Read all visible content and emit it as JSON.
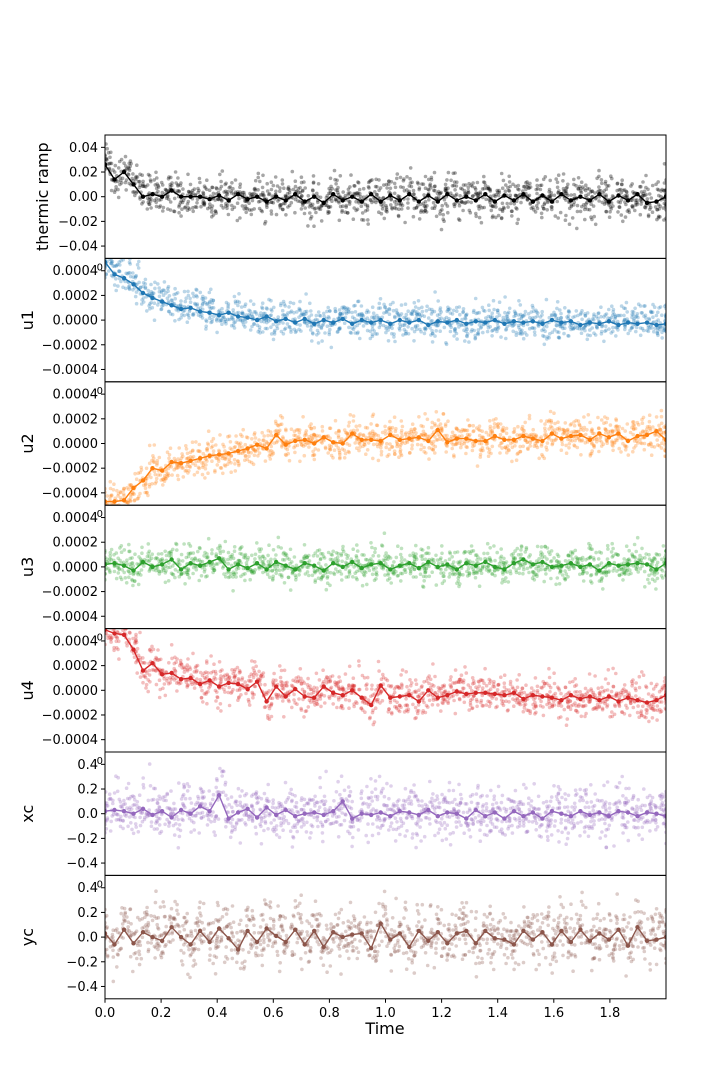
{
  "chart_data": {
    "type": "scatter",
    "layout": "stacked-panels-shared-x",
    "xlabel": "Time",
    "xlim": [
      0.0,
      2.0
    ],
    "x_ticks": [
      0.0,
      0.2,
      0.4,
      0.6,
      0.8,
      1.0,
      1.2,
      1.4,
      1.6,
      1.8
    ],
    "x_tick_labels": [
      "0.0",
      "0.2",
      "0.4",
      "0.6",
      "0.8",
      "1.0",
      "1.2",
      "1.4",
      "1.6",
      "1.8"
    ],
    "series": [
      {
        "name": "thermic ramp",
        "color": "#000000",
        "ylim": [
          -0.05,
          0.05
        ],
        "y_ticks": [
          -0.04,
          -0.02,
          0.0,
          0.02,
          0.04
        ],
        "y_tick_labels": [
          "−0.04",
          "−0.02",
          "0.00",
          "0.02",
          "0.04"
        ],
        "mean_line": [
          0.026,
          0.014,
          0.02,
          0.01,
          0.0,
          0.002,
          0.0,
          0.005,
          0.0,
          0.0,
          0.0,
          -0.002,
          0.001,
          -0.003,
          0.002,
          -0.002,
          0.0,
          -0.004,
          0.0,
          -0.003,
          0.002,
          -0.004,
          0.0,
          -0.005,
          0.002,
          -0.003,
          0.0,
          -0.004,
          0.002,
          -0.004,
          0.001,
          -0.003,
          0.002,
          -0.004,
          0.001,
          -0.004,
          0.002,
          -0.003,
          0.0,
          -0.003,
          0.002,
          -0.004,
          0.001,
          -0.003,
          0.002,
          -0.004,
          0.001,
          -0.004,
          0.002,
          -0.003,
          0.0,
          -0.003,
          0.002,
          -0.004,
          0.001,
          -0.003,
          0.002,
          -0.005,
          -0.004,
          0.0
        ],
        "scatter_spread": 0.008,
        "scatter_alpha": 0.35
      },
      {
        "name": "u1",
        "color": "#1f77b4",
        "ylim": [
          -0.0005,
          0.0005
        ],
        "y_ticks": [
          -0.0004,
          -0.0002,
          0.0,
          0.0002,
          0.0004
        ],
        "y_tick_labels": [
          "−0.0004",
          "−0.0002",
          "0.0000",
          "0.0002",
          "0.0004"
        ],
        "offset_text": "0",
        "mean_line": [
          0.00047,
          0.00037,
          0.00034,
          0.00029,
          0.00022,
          0.00018,
          0.00015,
          0.00012,
          9e-05,
          0.0001,
          7e-05,
          6e-05,
          4e-05,
          6e-05,
          3e-05,
          2e-05,
          0.0,
          3e-05,
          -1e-05,
          1e-05,
          -2e-05,
          1e-05,
          -3e-05,
          0.0,
          -2e-05,
          1e-05,
          -3e-05,
          0.0,
          -2e-05,
          0.0,
          -3e-05,
          0.0,
          -2e-05,
          0.0,
          -4e-05,
          -1e-05,
          -2e-05,
          0.0,
          -3e-05,
          -1e-05,
          -2e-05,
          0.0,
          -3e-05,
          -1e-05,
          -2e-05,
          -1e-05,
          -3e-05,
          0.0,
          -2e-05,
          -1e-05,
          -4e-05,
          -2e-05,
          -3e-05,
          -1e-05,
          -4e-05,
          -2e-05,
          -3e-05,
          -2e-05,
          -4e-05,
          -3e-05
        ],
        "scatter_spread": 7e-05,
        "scatter_alpha": 0.3
      },
      {
        "name": "u2",
        "color": "#ff7f0e",
        "ylim": [
          -0.0005,
          0.0005
        ],
        "y_ticks": [
          -0.0004,
          -0.0002,
          0.0,
          0.0002,
          0.0004
        ],
        "y_tick_labels": [
          "−0.0004",
          "−0.0002",
          "0.0000",
          "0.0002",
          "0.0004"
        ],
        "offset_text": "0",
        "mean_line": [
          -0.00047,
          -0.00047,
          -0.00046,
          -0.00036,
          -0.0003,
          -0.0002,
          -0.00022,
          -0.00015,
          -0.00016,
          -0.00014,
          -0.00012,
          -0.0001,
          -9e-05,
          -8e-05,
          -6e-05,
          -4e-05,
          -1e-05,
          -4e-05,
          7e-05,
          -1e-05,
          2e-05,
          3e-05,
          0.0,
          5e-05,
          1e-05,
          0.0,
          8e-05,
          3e-05,
          3e-05,
          2e-05,
          7e-05,
          3e-05,
          4e-05,
          5e-05,
          2e-05,
          0.00011,
          1e-05,
          4e-05,
          4e-05,
          2e-05,
          2e-05,
          6e-05,
          3e-05,
          3e-05,
          6e-05,
          4e-05,
          2e-05,
          8e-05,
          4e-05,
          6e-05,
          7e-05,
          3e-05,
          8e-05,
          5e-05,
          8e-05,
          2e-05,
          6e-05,
          7e-05,
          0.0001,
          3e-05
        ],
        "scatter_spread": 7e-05,
        "scatter_alpha": 0.3
      },
      {
        "name": "u3",
        "color": "#2ca02c",
        "ylim": [
          -0.0005,
          0.0005
        ],
        "y_ticks": [
          -0.0004,
          -0.0002,
          0.0,
          0.0002,
          0.0004
        ],
        "y_tick_labels": [
          "−0.0004",
          "−0.0002",
          "0.0000",
          "0.0002",
          "0.0004"
        ],
        "offset_text": "0",
        "mean_line": [
          2e-05,
          3e-05,
          1e-05,
          -3e-05,
          4e-05,
          0.0,
          2e-05,
          6e-05,
          -2e-05,
          3e-05,
          1e-05,
          4e-05,
          7e-05,
          -2e-05,
          2e-05,
          -1e-05,
          3e-05,
          -2e-05,
          4e-05,
          1e-05,
          -2e-05,
          3e-05,
          1e-05,
          -3e-05,
          3e-05,
          0.0,
          4e-05,
          -1e-05,
          2e-05,
          3e-05,
          -2e-05,
          1e-05,
          3e-05,
          -1e-05,
          4e-05,
          0.0,
          2e-05,
          -2e-05,
          3e-05,
          1e-05,
          4e-05,
          0.0,
          -2e-05,
          3e-05,
          6e-05,
          2e-05,
          4e-05,
          0.0,
          1e-05,
          3e-05,
          0.0,
          2e-05,
          -3e-05,
          3e-05,
          1e-05,
          2e-05,
          3e-05,
          2e-05,
          -2e-05,
          3e-05
        ],
        "scatter_spread": 7e-05,
        "scatter_alpha": 0.3
      },
      {
        "name": "u4",
        "color": "#d62728",
        "ylim": [
          -0.0005,
          0.0005
        ],
        "y_ticks": [
          -0.0004,
          -0.0002,
          0.0,
          0.0002,
          0.0004
        ],
        "y_tick_labels": [
          "−0.0004",
          "−0.0002",
          "0.0000",
          "0.0002",
          "0.0004"
        ],
        "offset_text": "0",
        "mean_line": [
          0.00049,
          0.00046,
          0.00045,
          0.00033,
          0.00016,
          0.00022,
          0.00013,
          0.00014,
          9e-05,
          0.0001,
          5e-05,
          8e-05,
          3e-05,
          6e-05,
          5e-05,
          1e-05,
          7e-05,
          -9e-05,
          3e-05,
          -5e-05,
          1e-05,
          -5e-05,
          -6e-05,
          3e-05,
          -2e-05,
          -4e-05,
          0.0,
          -6e-05,
          -0.00012,
          4e-05,
          -6e-05,
          -5e-05,
          -4e-05,
          -9e-05,
          0.0,
          -6e-05,
          -4e-05,
          -1e-05,
          -3e-05,
          -2e-05,
          -2e-05,
          -3e-05,
          -4e-05,
          -2e-05,
          -7e-05,
          -4e-05,
          -5e-05,
          -6e-05,
          -8e-05,
          -4e-05,
          -7e-05,
          -5e-05,
          -8e-05,
          -5e-05,
          -9e-05,
          -6e-05,
          -8e-05,
          -0.0001,
          -8e-05,
          -4e-05
        ],
        "scatter_spread": 8e-05,
        "scatter_alpha": 0.3
      },
      {
        "name": "xc",
        "color": "#9467bd",
        "ylim": [
          -0.5,
          0.5
        ],
        "y_ticks": [
          -0.4,
          -0.2,
          0.0,
          0.2,
          0.4
        ],
        "y_tick_labels": [
          "−0.4",
          "−0.2",
          "0.0",
          "0.2",
          "0.4"
        ],
        "offset_text": "0",
        "mean_line": [
          0.02,
          0.03,
          0.02,
          0.0,
          0.04,
          -0.01,
          0.02,
          -0.03,
          0.03,
          0.0,
          0.06,
          0.02,
          0.15,
          -0.04,
          0.01,
          0.04,
          -0.03,
          0.05,
          -0.01,
          0.03,
          -0.02,
          0.0,
          0.01,
          -0.01,
          0.02,
          0.1,
          -0.04,
          0.0,
          -0.01,
          0.01,
          -0.02,
          0.02,
          0.01,
          -0.01,
          0.03,
          -0.02,
          0.01,
          0.0,
          -0.04,
          0.03,
          -0.02,
          0.01,
          -0.04,
          0.02,
          -0.02,
          0.01,
          -0.04,
          0.02,
          0.0,
          -0.02,
          0.02,
          -0.01,
          0.01,
          -0.02,
          0.02,
          0.01,
          -0.02,
          0.01,
          0.0,
          -0.02
        ],
        "scatter_spread": 0.1,
        "scatter_alpha": 0.3
      },
      {
        "name": "yc",
        "color": "#8c564b",
        "ylim": [
          -0.5,
          0.5
        ],
        "y_ticks": [
          -0.4,
          -0.2,
          0.0,
          0.2,
          0.4
        ],
        "y_tick_labels": [
          "−0.4",
          "−0.2",
          "0.0",
          "0.2",
          "0.4"
        ],
        "offset_text": "0",
        "mean_line": [
          0.03,
          -0.06,
          0.06,
          -0.05,
          0.04,
          0.0,
          -0.03,
          0.08,
          0.0,
          -0.06,
          0.05,
          -0.04,
          0.07,
          -0.01,
          -0.1,
          0.05,
          -0.04,
          0.07,
          0.01,
          -0.04,
          0.06,
          -0.06,
          0.05,
          -0.08,
          0.04,
          0.0,
          0.02,
          0.03,
          -0.09,
          0.11,
          -0.02,
          0.03,
          -0.08,
          0.05,
          -0.03,
          0.04,
          -0.05,
          0.03,
          0.05,
          -0.05,
          0.05,
          -0.01,
          -0.02,
          -0.06,
          0.05,
          -0.02,
          0.04,
          -0.06,
          0.05,
          -0.04,
          0.06,
          -0.03,
          0.03,
          -0.02,
          0.06,
          -0.07,
          0.08,
          -0.03,
          -0.02,
          0.0
        ],
        "scatter_spread": 0.11,
        "scatter_alpha": 0.3
      }
    ]
  }
}
